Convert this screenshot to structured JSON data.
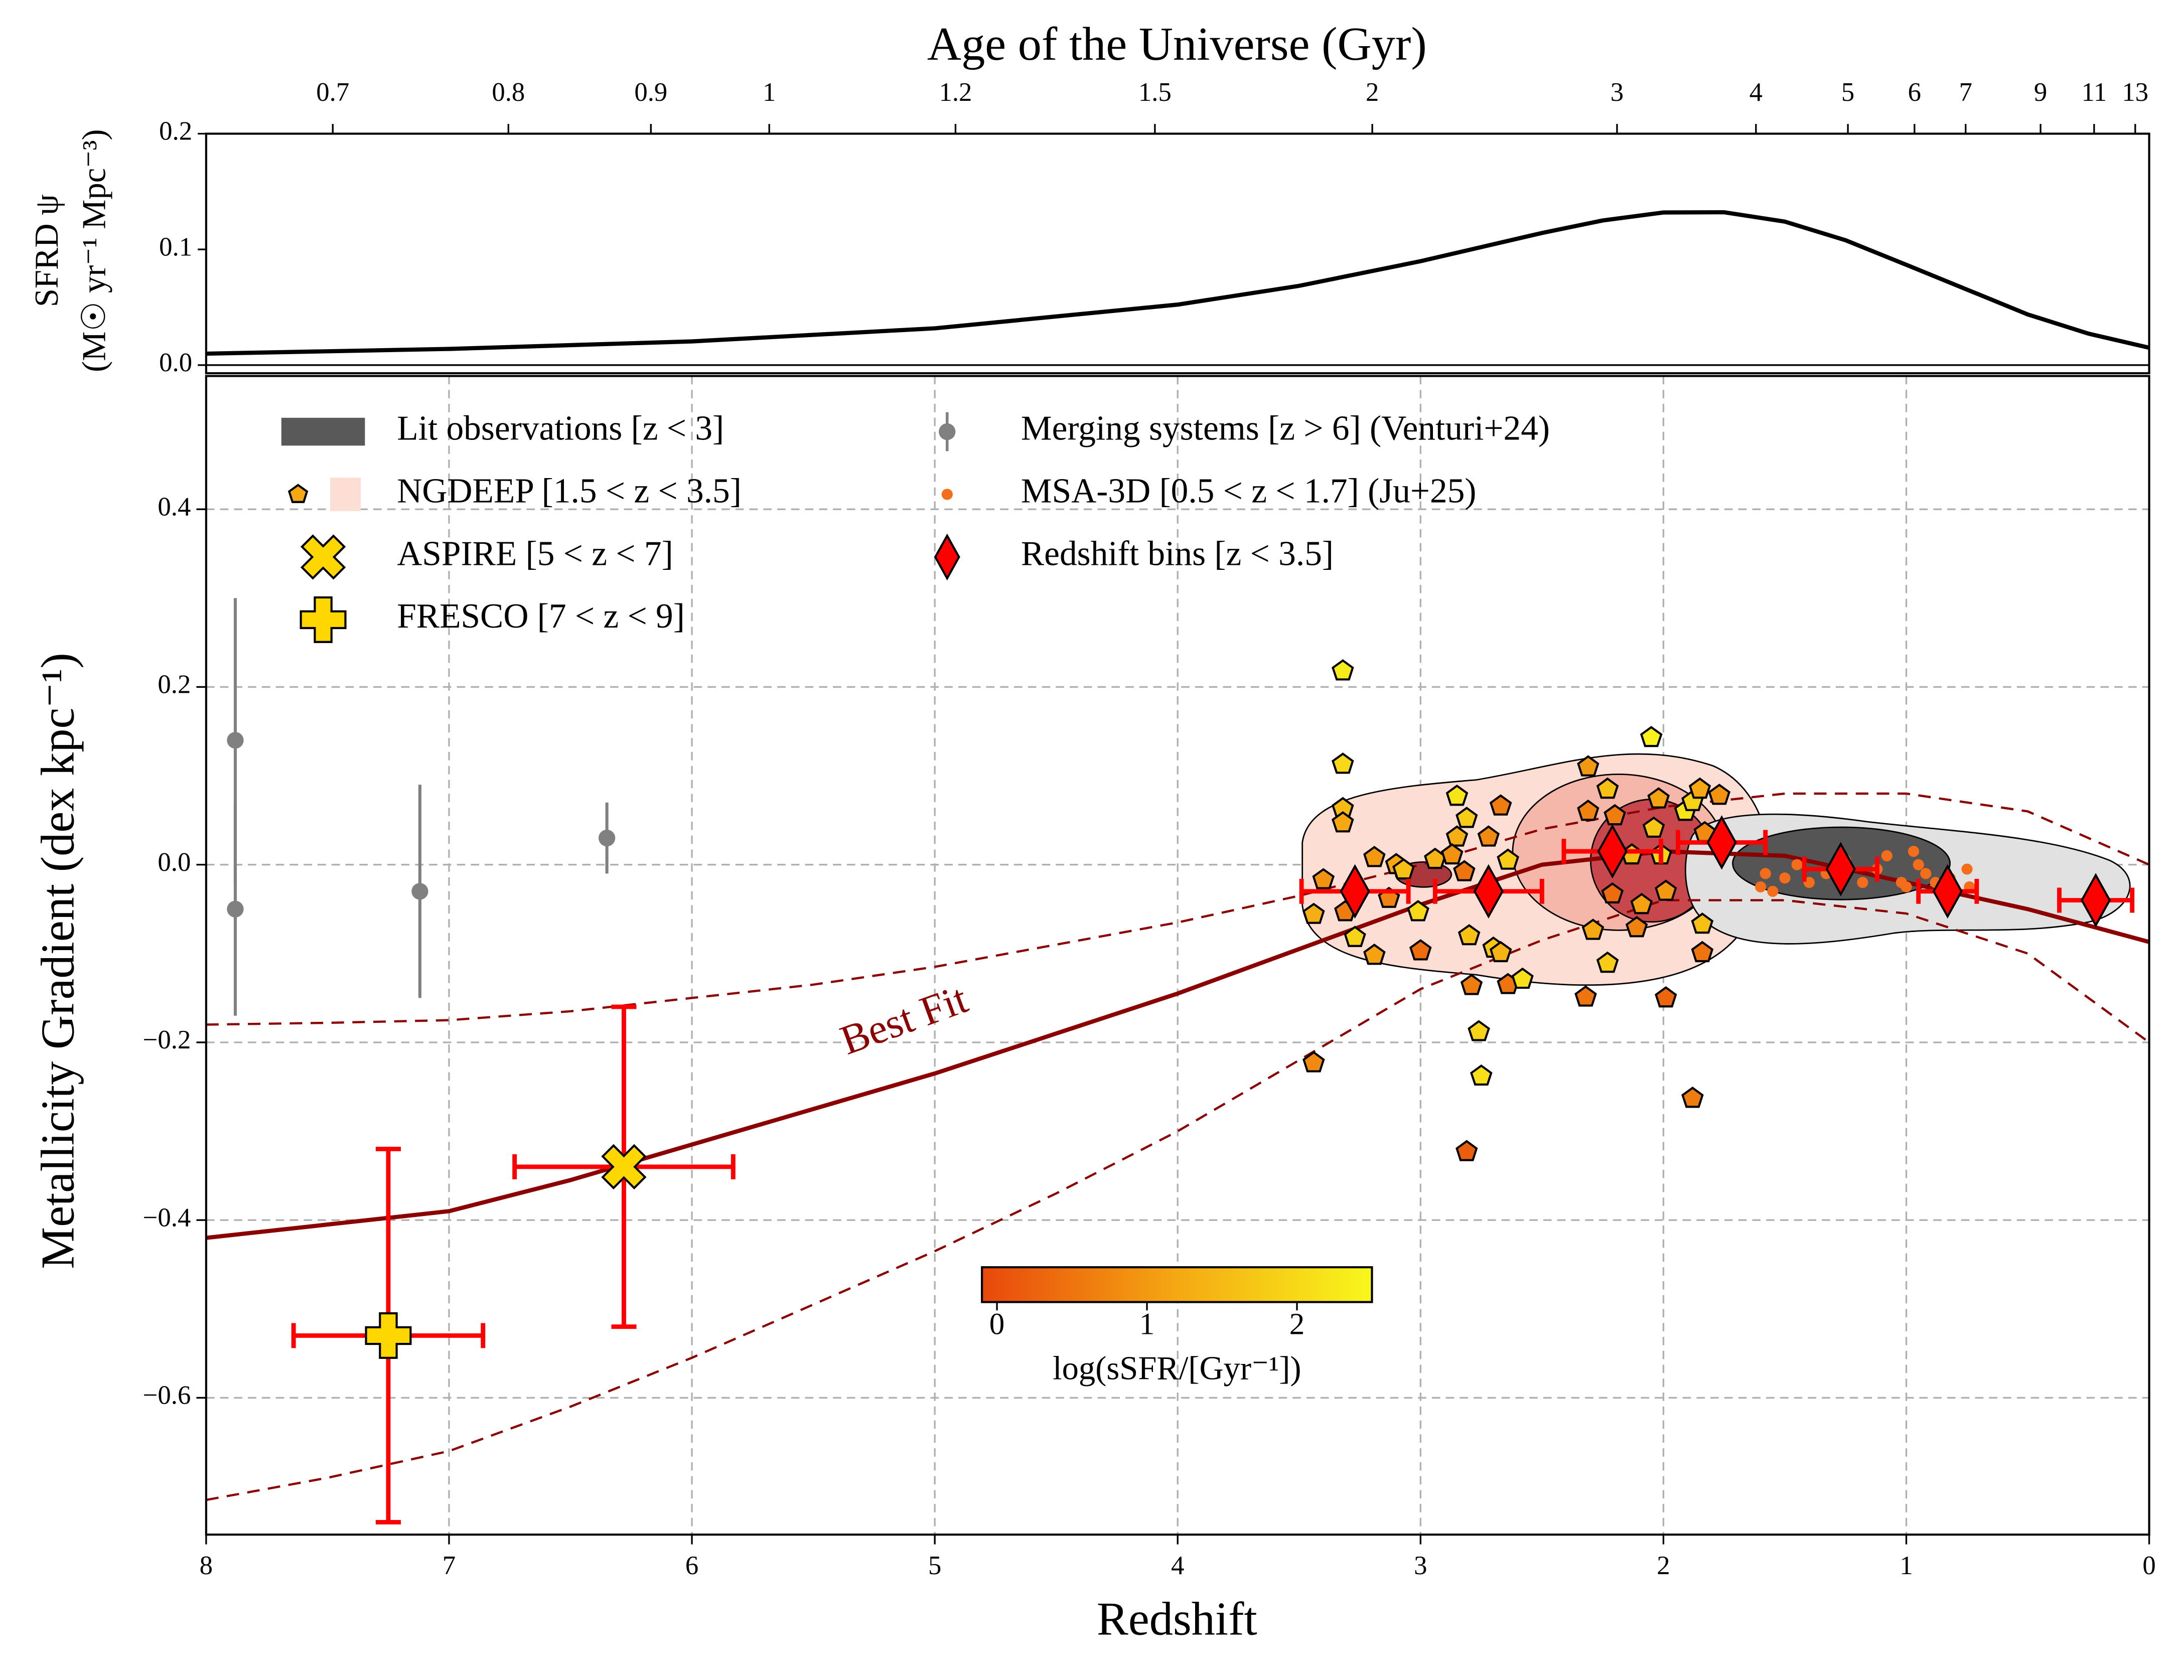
{
  "chart_data": [
    {
      "type": "line",
      "ylabel": "SFRD ψ",
      "ylabel_units": "(M☉ yr⁻¹ Mpc⁻³)",
      "x": [
        8,
        7,
        6,
        5,
        4,
        3.5,
        3,
        2.5,
        2.25,
        2,
        1.75,
        1.5,
        1.25,
        1,
        0.5,
        0.25,
        0
      ],
      "values": [
        0.0099,
        0.014,
        0.0205,
        0.0318,
        0.0523,
        0.0685,
        0.0898,
        0.1142,
        0.125,
        0.1319,
        0.1321,
        0.124,
        0.1079,
        0.0867,
        0.0438,
        0.0272,
        0.015
      ],
      "color": "#000000",
      "xlim": [
        8,
        0
      ],
      "ylim": [
        -0.007,
        0.2
      ],
      "yticks": [
        {
          "value": 0,
          "label": "0.0"
        },
        0.1,
        0.2
      ],
      "top_axis": {
        "label": "Age of the Universe (Gyr)",
        "ticks": [
          0.7,
          0.8,
          0.9,
          1,
          1.2,
          1.5,
          2,
          3,
          4,
          5,
          6,
          7,
          9,
          11,
          13
        ]
      }
    },
    {
      "type": "scatter",
      "xlabel": "Redshift",
      "ylabel": "Metallicity Gradient (dex kpc⁻¹)",
      "xlim": [
        8,
        0
      ],
      "xticks": [
        8,
        7,
        6,
        5,
        4,
        3,
        2,
        1,
        0
      ],
      "ylim": [
        -0.754,
        0.55
      ],
      "yticks": [
        {
          "value": -0.6,
          "label": "−0.6"
        },
        {
          "value": -0.4,
          "label": "−0.4"
        },
        {
          "value": -0.2,
          "label": "−0.2"
        },
        {
          "value": 0,
          "label": "0.0"
        },
        0.2,
        0.4
      ],
      "grid": true,
      "series": [
        {
          "name": "Lit observations [z < 3]",
          "color": "#595959",
          "marker": "contour"
        },
        {
          "name": "NGDEEP [1.5 < z < 3.5]",
          "color": "#fcded5",
          "marker": "pentagon",
          "x": [
            3.32,
            3.32,
            3.32,
            3.32,
            3.44,
            3.44,
            3.4,
            3.31,
            3.27,
            3.19,
            3.19,
            3.13,
            3.1,
            3.07,
            3.01,
            3.0,
            2.94,
            2.85,
            2.81,
            2.85,
            2.87,
            2.82,
            2.8,
            2.79,
            2.81,
            2.76,
            2.75,
            2.72,
            2.67,
            2.7,
            2.67,
            2.64,
            2.64,
            2.58,
            2.31,
            2.31,
            2.32,
            2.29,
            2.23,
            2.23,
            2.21,
            2.2,
            2.13,
            2.09,
            2.11,
            2.05,
            2.04,
            2.02,
            2.01,
            1.99,
            1.99,
            1.91,
            1.88,
            1.85,
            1.83,
            1.84,
            1.84,
            1.88,
            1.77
          ],
          "values": [
            0.218,
            0.113,
            0.063,
            0.047,
            -0.056,
            -0.223,
            -0.017,
            -0.053,
            -0.082,
            -0.102,
            0.008,
            -0.038,
            0.0,
            -0.006,
            -0.053,
            -0.097,
            0.006,
            0.077,
            0.052,
            0.031,
            0.011,
            -0.008,
            -0.08,
            -0.136,
            -0.323,
            -0.188,
            -0.238,
            0.031,
            0.066,
            -0.094,
            -0.099,
            -0.135,
            0.005,
            -0.129,
            0.11,
            0.06,
            -0.149,
            -0.074,
            0.085,
            -0.111,
            -0.033,
            0.055,
            0.011,
            -0.045,
            -0.071,
            0.143,
            0.041,
            0.074,
            0.011,
            -0.03,
            -0.15,
            0.06,
            0.071,
            0.085,
            0.036,
            -0.067,
            -0.099,
            -0.263,
            0.078
          ],
          "c": [
            2.3,
            2.0,
            1.5,
            1.2,
            1.3,
            0.8,
            0.9,
            0.6,
            1.9,
            1.1,
            1.0,
            0.7,
            1.2,
            1.6,
            2.0,
            0.4,
            1.4,
            2.2,
            1.8,
            1.3,
            0.9,
            0.5,
            1.6,
            0.6,
            0.2,
            1.9,
            2.1,
            0.8,
            0.6,
            1.7,
            1.4,
            0.5,
            1.8,
            2.1,
            1.0,
            0.7,
            0.5,
            1.2,
            1.6,
            1.8,
            0.4,
            0.6,
            1.5,
            1.1,
            0.7,
            2.4,
            1.7,
            1.1,
            1.9,
            1.0,
            0.3,
            2.2,
            1.9,
            1.2,
            0.8,
            1.6,
            0.5,
            0.6,
            0.9
          ]
        },
        {
          "name": "ASPIRE  [5 < z < 7]",
          "color": "#ffd700",
          "marker": "x",
          "errcolor": "#ff0000",
          "x": [
            6.28
          ],
          "values": [
            -0.34
          ],
          "xerr": [
            0.45
          ],
          "yerr": [
            0.18
          ]
        },
        {
          "name": "FRESCO [7 < z < 9]",
          "color": "#ffd700",
          "marker": "plus",
          "errcolor": "#ff0000",
          "x": [
            7.25
          ],
          "values": [
            -0.53
          ],
          "xerr": [
            0.39
          ],
          "yerr": [
            0.21
          ]
        },
        {
          "name": "Merging systems [z > 6] (Venturi+24)",
          "color": "#808080",
          "marker": "circle",
          "errcolor": "#808080",
          "x": [
            7.88,
            7.88,
            7.12,
            6.35
          ],
          "values": [
            0.14,
            -0.05,
            -0.03,
            0.03
          ],
          "yerr": [
            0.16,
            0.12,
            0.12,
            0.04
          ]
        },
        {
          "name": "MSA-3D [0.5 < z < 1.7] (Ju+25)",
          "color": "#f46d1b",
          "marker": "dot",
          "x": [
            1.6,
            1.58,
            1.55,
            1.5,
            1.45,
            1.4,
            1.33,
            1.25,
            1.18,
            1.12,
            1.08,
            1.02,
            1.0,
            0.97,
            0.95,
            0.92,
            0.88,
            0.82,
            0.75,
            0.74
          ],
          "values": [
            -0.025,
            -0.01,
            -0.03,
            -0.015,
            0.0,
            -0.02,
            -0.01,
            0.005,
            -0.02,
            -0.005,
            0.01,
            -0.02,
            -0.025,
            0.015,
            0.0,
            -0.01,
            -0.02,
            -0.015,
            -0.005,
            -0.025
          ]
        },
        {
          "name": "Redshift bins [z < 3.5]",
          "color": "#ff0000",
          "marker": "diamond",
          "errcolor": "#ff0000",
          "x": [
            3.27,
            2.72,
            2.21,
            1.76,
            1.27,
            0.83,
            0.22
          ],
          "values": [
            -0.03,
            -0.03,
            0.015,
            0.025,
            -0.005,
            -0.03,
            -0.04
          ],
          "xerr": [
            0.22,
            0.22,
            0.2,
            0.18,
            0.15,
            0.12,
            0.15
          ]
        },
        {
          "name": "Best Fit",
          "color": "#8b0000",
          "style": "solid",
          "x": [
            8,
            7.5,
            7,
            6.5,
            6,
            5.5,
            5,
            4.5,
            4,
            3.5,
            3,
            2.5,
            2,
            1.5,
            1,
            0.5,
            0
          ],
          "values": [
            -0.42,
            -0.405,
            -0.39,
            -0.355,
            -0.315,
            -0.275,
            -0.235,
            -0.19,
            -0.145,
            -0.095,
            -0.045,
            0.0,
            0.015,
            0.01,
            -0.02,
            -0.05,
            -0.087
          ]
        },
        {
          "color": "#8b0000",
          "style": "dashed",
          "x": [
            8,
            7.5,
            7,
            6.5,
            6,
            5.5,
            5,
            4.5,
            4,
            3.5,
            3,
            2.5,
            2,
            1.5,
            1,
            0.5,
            0
          ],
          "values": [
            -0.18,
            -0.178,
            -0.175,
            -0.165,
            -0.15,
            -0.135,
            -0.115,
            -0.09,
            -0.065,
            -0.035,
            0.0,
            0.04,
            0.065,
            0.08,
            0.08,
            0.06,
            0.0
          ]
        },
        {
          "color": "#8b0000",
          "style": "dashed",
          "x": [
            8,
            7.5,
            7,
            6.5,
            6,
            5.5,
            5,
            4.5,
            4,
            3.5,
            3,
            2.5,
            2,
            1.5,
            1,
            0.5,
            0
          ],
          "values": [
            -0.715,
            -0.69,
            -0.66,
            -0.61,
            -0.555,
            -0.495,
            -0.435,
            -0.37,
            -0.3,
            -0.22,
            -0.14,
            -0.085,
            -0.04,
            -0.04,
            -0.055,
            -0.1,
            -0.2
          ]
        }
      ],
      "colorbar": {
        "label": "log(sSFR/[Gyr⁻¹])",
        "lim": [
          -0.1,
          2.5
        ],
        "ticks": [
          0,
          1,
          2
        ],
        "colors": [
          "#e8480c",
          "#f5a812",
          "#f8f71c"
        ]
      }
    }
  ]
}
